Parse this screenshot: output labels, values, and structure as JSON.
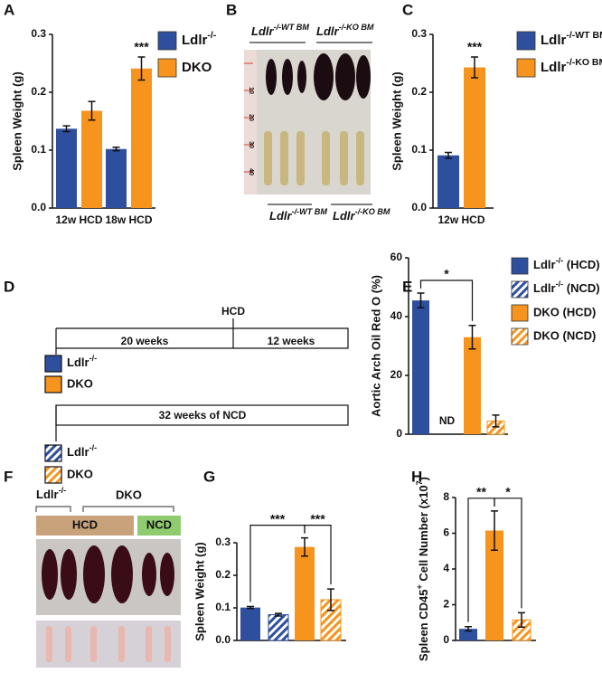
{
  "chart_data": [
    {
      "type": "bar",
      "ylabel": "Spleen Weight (g)",
      "categories": [
        "12w HCD",
        "18w HCD"
      ],
      "series": [
        {
          "name": [
            "Ldlr",
            "-/-"
          ],
          "color": "#2e4f9e",
          "values": [
            0.137,
            0.102
          ],
          "errors": [
            0.005,
            0.003
          ]
        },
        {
          "name": "DKO",
          "color": "#f7941d",
          "values": [
            0.168,
            0.241
          ],
          "errors": [
            0.016,
            0.02
          ]
        }
      ],
      "ylim": [
        0,
        0.3
      ],
      "yticks": [
        {
          "value": 0,
          "label": "0.0"
        },
        0.1,
        0.2,
        0.3
      ],
      "annotations": [
        "***"
      ]
    },
    {
      "type": "bar",
      "ylabel": "Spleen Weight (g)",
      "categories": [
        "12w HCD"
      ],
      "series": [
        {
          "name": [
            "Ldlr",
            "-/-WT BM"
          ],
          "color": "#2e4f9e",
          "values": [
            0.091
          ],
          "errors": [
            0.005
          ]
        },
        {
          "name": [
            "Ldlr",
            "-/-KO BM"
          ],
          "color": "#f7941d",
          "values": [
            0.243
          ],
          "errors": [
            0.018
          ]
        }
      ],
      "ylim": [
        0,
        0.3
      ],
      "yticks": [
        {
          "value": 0,
          "label": "0.0"
        },
        0.1,
        0.2,
        0.3
      ],
      "annotations": [
        "***"
      ]
    },
    {
      "type": "bar",
      "ylabel": "Aortic Arch Oil Red O (%)",
      "series": [
        {
          "name": [
            "Ldlr",
            "-/-",
            " (HCD)"
          ],
          "color": "#2e4f9e",
          "hatch": false,
          "values": [
            45.5
          ],
          "errors": [
            2.5
          ]
        },
        {
          "name": [
            "Ldlr",
            "-/-",
            " (NCD)"
          ],
          "color": "#2e4f9e",
          "hatch": true,
          "values": [
            null
          ],
          "errors": [
            null
          ]
        },
        {
          "name": "DKO (HCD)",
          "color": "#f7941d",
          "hatch": false,
          "values": [
            33
          ],
          "errors": [
            4
          ]
        },
        {
          "name": "DKO (NCD)",
          "color": "#f7941d",
          "hatch": true,
          "values": [
            4.5
          ],
          "errors": [
            2
          ]
        }
      ],
      "ylim": [
        0,
        60
      ],
      "yticks": [
        0,
        20,
        40,
        60
      ],
      "annotations": [
        "*",
        "ND"
      ]
    },
    {
      "type": "bar",
      "ylabel": "Spleen Weight (g)",
      "values": [
        0.101,
        0.079,
        0.287,
        0.125
      ],
      "errors": [
        0.003,
        0.004,
        0.028,
        0.033
      ],
      "colors": [
        "#2e4f9e",
        "#2e4f9e",
        "#f7941d",
        "#f7941d"
      ],
      "hatch": [
        false,
        true,
        false,
        true
      ],
      "ylim": [
        0,
        0.3
      ],
      "yticks": [
        {
          "value": 0,
          "label": "0.0"
        },
        0.1,
        0.2,
        0.3
      ],
      "annotations": [
        "***",
        "***"
      ]
    },
    {
      "type": "bar",
      "ylabel": [
        "Spleen CD45",
        "+",
        " Cell Number (x10",
        "7",
        ")"
      ],
      "values": [
        0.65,
        6.15,
        1.15
      ],
      "errors": [
        0.12,
        1.1,
        0.4
      ],
      "colors": [
        "#2e4f9e",
        "#f7941d",
        "#f7941d"
      ],
      "hatch": [
        false,
        false,
        true
      ],
      "ylim": [
        0,
        8
      ],
      "yticks": [
        0,
        2,
        4,
        6,
        8
      ],
      "annotations": [
        "**",
        "*"
      ]
    }
  ],
  "figure": {
    "panels": [
      "A",
      "B",
      "C",
      "D",
      "E",
      "F",
      "G",
      "H"
    ],
    "photo_b": {
      "top": [
        [
          "Ldlr",
          "-/-WT BM"
        ],
        [
          "Ldlr",
          "-/-KO BM"
        ]
      ],
      "bottom": [
        [
          "Ldlr",
          "-/-WT BM"
        ],
        [
          "Ldlr",
          "-/-KO BM"
        ]
      ],
      "ruler": [
        "10",
        "20",
        "30",
        "40"
      ]
    },
    "timeline": {
      "marker": "HCD",
      "phase1": "20 weeks",
      "phase2": "12 weeks",
      "ncd": "32 weeks of NCD",
      "groups_hcd": [
        [
          "Ldlr",
          "-/-"
        ],
        "DKO"
      ],
      "groups_ncd": [
        [
          "Ldlr",
          "-/-"
        ],
        "DKO"
      ]
    },
    "photo_f": {
      "groups": [
        [
          "Ldlr",
          "-/-"
        ],
        "DKO"
      ],
      "diets": [
        "HCD",
        "NCD"
      ]
    }
  }
}
